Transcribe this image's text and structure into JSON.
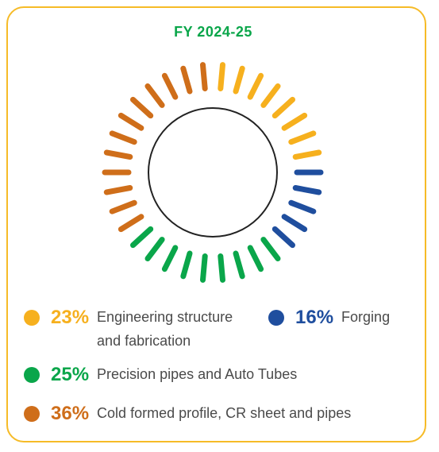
{
  "chart_data": {
    "type": "pie",
    "title": "FY 2024-25",
    "categories": [
      "Engineering structure and fabrication",
      "Forging",
      "Precision pipes and Auto Tubes",
      "Cold formed profile, CR sheet and pipes"
    ],
    "values": [
      23,
      16,
      25,
      36
    ],
    "value_labels": [
      "23%",
      "16%",
      "25%",
      "36%"
    ],
    "colors": [
      "#f6b01e",
      "#1f4e9e",
      "#0aa64a",
      "#cf6e1a"
    ]
  },
  "legend": [
    {
      "pct": "23%",
      "label_lines": [
        "Engineering structure",
        "and fabrication"
      ],
      "color": "#f6b01e"
    },
    {
      "pct": "16%",
      "label_lines": [
        "Forging"
      ],
      "color": "#1f4e9e"
    },
    {
      "pct": "25%",
      "label_lines": [
        "Precision pipes and Auto Tubes"
      ],
      "color": "#0aa64a"
    },
    {
      "pct": "36%",
      "label_lines": [
        "Cold formed profile, CR sheet and pipes"
      ],
      "color": "#cf6e1a"
    }
  ]
}
